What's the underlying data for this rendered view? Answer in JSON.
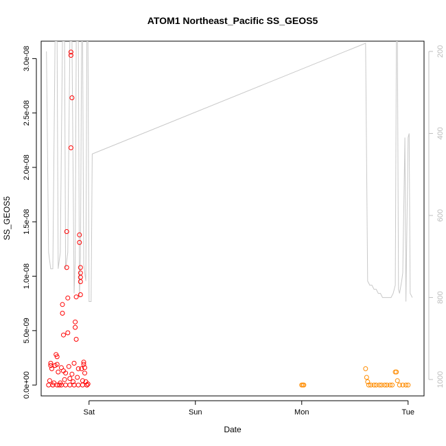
{
  "chart_data": {
    "type": "scatter",
    "title": "ATOM1 Northeast_Pacific SS_GEOS5",
    "xlabel": "Date",
    "ylabel": "SS_GEOS5",
    "x_unit": "days from Fri 00:00",
    "xlim": [
      0.55,
      4.15
    ],
    "ylim": [
      -1e-09,
      3.16e-08
    ],
    "x_ticks": [
      {
        "value": 1,
        "label": "Sat"
      },
      {
        "value": 2,
        "label": "Sun"
      },
      {
        "value": 3,
        "label": "Mon"
      },
      {
        "value": 4,
        "label": "Tue"
      }
    ],
    "y_ticks": [
      {
        "value": 0,
        "label": "0.0e+00"
      },
      {
        "value": 5e-09,
        "label": "5.0e-09"
      },
      {
        "value": 1e-08,
        "label": "1.0e-08"
      },
      {
        "value": 1.5e-08,
        "label": "1.5e-08"
      },
      {
        "value": 2e-08,
        "label": "2.0e-08"
      },
      {
        "value": 2.5e-08,
        "label": "2.5e-08"
      },
      {
        "value": 3e-08,
        "label": "3.0e-08"
      }
    ],
    "right_axis": {
      "ylim": [
        1040,
        175
      ],
      "ticks": [
        {
          "value": 200,
          "label": "200"
        },
        {
          "value": 400,
          "label": "400"
        },
        {
          "value": 600,
          "label": "600"
        },
        {
          "value": 800,
          "label": "800"
        },
        {
          "value": 1000,
          "label": "1000"
        }
      ],
      "color": "#bdbdbd"
    },
    "grid": false,
    "series": [
      {
        "kind": "points",
        "color": "#ff0000",
        "values": [
          [
            0.62,
            0.0
          ],
          [
            0.63,
            4e-10
          ],
          [
            0.64,
            1.8e-09
          ],
          [
            0.64,
            2e-09
          ],
          [
            0.65,
            1.5e-09
          ],
          [
            0.66,
            0.0
          ],
          [
            0.67,
            2e-10
          ],
          [
            0.68,
            1.8e-09
          ],
          [
            0.69,
            2.8e-09
          ],
          [
            0.7,
            2.6e-09
          ],
          [
            0.7,
            1.9e-09
          ],
          [
            0.71,
            1.2e-09
          ],
          [
            0.72,
            0.0
          ],
          [
            0.73,
            2e-10
          ],
          [
            0.74,
            1.6e-09
          ],
          [
            0.75,
            7.4e-09
          ],
          [
            0.75,
            6.6e-09
          ],
          [
            0.76,
            4.6e-09
          ],
          [
            0.76,
            1.3e-09
          ],
          [
            0.77,
            5e-10
          ],
          [
            0.78,
            1.1e-09
          ],
          [
            0.79,
            1.41e-08
          ],
          [
            0.79,
            1.08e-08
          ],
          [
            0.8,
            8e-09
          ],
          [
            0.8,
            4.8e-09
          ],
          [
            0.81,
            1.7e-09
          ],
          [
            0.82,
            6e-10
          ],
          [
            0.83,
            3.06e-08
          ],
          [
            0.83,
            3.03e-08
          ],
          [
            0.84,
            2.64e-08
          ],
          [
            0.83,
            2.18e-08
          ],
          [
            0.84,
            1e-09
          ],
          [
            0.85,
            3e-10
          ],
          [
            0.86,
            2e-09
          ],
          [
            0.87,
            5.8e-09
          ],
          [
            0.87,
            5.3e-09
          ],
          [
            0.88,
            4.2e-09
          ],
          [
            0.88,
            8.1e-09
          ],
          [
            0.89,
            7e-10
          ],
          [
            0.9,
            1.5e-09
          ],
          [
            0.91,
            1.38e-08
          ],
          [
            0.91,
            1.31e-08
          ],
          [
            0.92,
            1.08e-08
          ],
          [
            0.92,
            1.03e-08
          ],
          [
            0.92,
            9.9e-09
          ],
          [
            0.92,
            9.5e-09
          ],
          [
            0.92,
            8.3e-09
          ],
          [
            0.93,
            1.5e-09
          ],
          [
            0.94,
            4e-10
          ],
          [
            0.95,
            2.1e-09
          ],
          [
            0.95,
            1.9e-09
          ],
          [
            0.96,
            1.6e-09
          ],
          [
            0.96,
            1.1e-09
          ],
          [
            0.97,
            3e-10
          ],
          [
            0.98,
            0.0
          ],
          [
            0.99,
            1e-10
          ],
          [
            0.66,
            0.0
          ],
          [
            0.7,
            0.0
          ],
          [
            0.74,
            0.0
          ],
          [
            0.78,
            0.0
          ],
          [
            0.82,
            0.0
          ],
          [
            0.86,
            0.0
          ],
          [
            0.9,
            0.0
          ],
          [
            0.94,
            0.0
          ],
          [
            0.98,
            0.0
          ]
        ]
      },
      {
        "kind": "points",
        "color": "#ff8c00",
        "values": [
          [
            3.0,
            0.0
          ],
          [
            3.01,
            0.0
          ],
          [
            3.02,
            0.0
          ],
          [
            3.6,
            1.5e-09
          ],
          [
            3.61,
            7e-10
          ],
          [
            3.62,
            3e-10
          ],
          [
            3.63,
            0.0
          ],
          [
            3.65,
            0.0
          ],
          [
            3.68,
            0.0
          ],
          [
            3.7,
            0.0
          ],
          [
            3.73,
            0.0
          ],
          [
            3.75,
            0.0
          ],
          [
            3.78,
            0.0
          ],
          [
            3.8,
            0.0
          ],
          [
            3.83,
            0.0
          ],
          [
            3.85,
            0.0
          ],
          [
            3.88,
            1.2e-09
          ],
          [
            3.89,
            1.2e-09
          ],
          [
            3.9,
            4e-10
          ],
          [
            3.92,
            0.0
          ],
          [
            3.95,
            0.0
          ],
          [
            3.98,
            0.0
          ],
          [
            4.0,
            0.0
          ]
        ]
      },
      {
        "kind": "line",
        "axis": "right",
        "color": "#c8c8c8",
        "values": [
          [
            0.6,
            200
          ],
          [
            0.62,
            690
          ],
          [
            0.64,
            730
          ],
          [
            0.66,
            730
          ],
          [
            0.68,
            175
          ],
          [
            0.7,
            175
          ],
          [
            0.71,
            730
          ],
          [
            0.73,
            690
          ],
          [
            0.75,
            175
          ],
          [
            0.77,
            175
          ],
          [
            0.78,
            730
          ],
          [
            0.8,
            690
          ],
          [
            0.82,
            175
          ],
          [
            0.84,
            175
          ],
          [
            0.86,
            790
          ],
          [
            0.87,
            710
          ],
          [
            0.88,
            175
          ],
          [
            0.9,
            175
          ],
          [
            0.91,
            800
          ],
          [
            0.92,
            700
          ],
          [
            0.93,
            175
          ],
          [
            0.94,
            175
          ],
          [
            0.95,
            720
          ],
          [
            0.97,
            760
          ],
          [
            0.98,
            175
          ],
          [
            0.99,
            175
          ],
          [
            1.0,
            810
          ],
          [
            1.02,
            810
          ],
          [
            1.03,
            450
          ],
          [
            3.6,
            180
          ],
          [
            3.62,
            760
          ],
          [
            3.64,
            770
          ],
          [
            3.66,
            770
          ],
          [
            3.68,
            780
          ],
          [
            3.7,
            780
          ],
          [
            3.72,
            790
          ],
          [
            3.74,
            790
          ],
          [
            3.76,
            800
          ],
          [
            3.78,
            800
          ],
          [
            3.8,
            800
          ],
          [
            3.82,
            800
          ],
          [
            3.84,
            800
          ],
          [
            3.86,
            790
          ],
          [
            3.88,
            770
          ],
          [
            3.89,
            175
          ],
          [
            3.9,
            175
          ],
          [
            3.91,
            780
          ],
          [
            3.92,
            790
          ],
          [
            3.94,
            760
          ],
          [
            3.95,
            740
          ],
          [
            3.97,
            410
          ],
          [
            3.98,
            810
          ],
          [
            4.0,
            410
          ],
          [
            4.01,
            400
          ],
          [
            4.02,
            790
          ],
          [
            4.03,
            795
          ],
          [
            4.04,
            800
          ]
        ]
      }
    ]
  }
}
